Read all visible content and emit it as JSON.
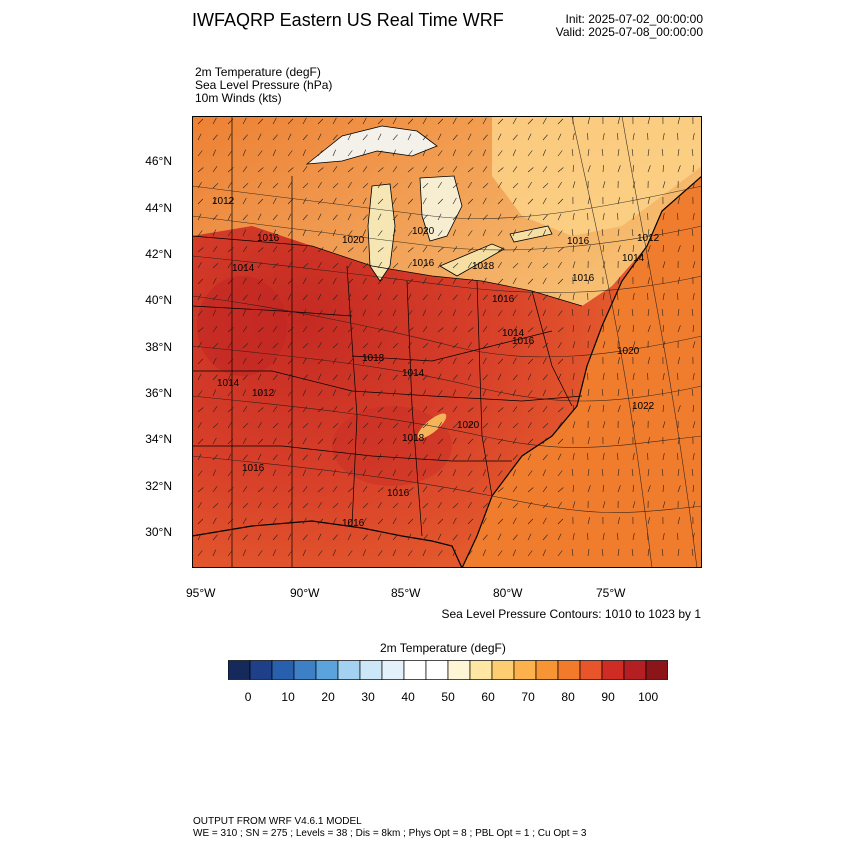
{
  "header": {
    "title": "IWFAQRP Eastern US Real Time WRF",
    "init": "Init: 2025-07-02_00:00:00",
    "valid": "Valid: 2025-07-08_00:00:00"
  },
  "fields": [
    "2m Temperature   (degF)",
    "Sea Level Pressure   (hPa)",
    "10m Winds   (kts)"
  ],
  "map": {
    "lat_labels": [
      "46°N",
      "44°N",
      "42°N",
      "40°N",
      "38°N",
      "36°N",
      "34°N",
      "32°N",
      "30°N"
    ],
    "lon_labels": [
      "95°W",
      "90°W",
      "85°W",
      "80°W",
      "75°W"
    ],
    "pressure_labels": [
      "1012",
      "1016",
      "1014",
      "1020",
      "1020",
      "1018",
      "1016",
      "1016",
      "1018",
      "1014",
      "1020",
      "1012",
      "1016",
      "1014",
      "1016",
      "1016",
      "1014",
      "1016",
      "1016",
      "1016",
      "1018",
      "1020",
      "1022",
      "1012",
      "1014"
    ],
    "contour_note": "Sea Level Pressure Contours: 1010 to 1023 by 1",
    "colors": {
      "land_hot": "#d83a25",
      "land_warm": "#ee6b2e",
      "ocean": "#f08030",
      "lake": "#f6e6b4",
      "north_cool": "#fbc26a"
    }
  },
  "colorbar": {
    "title": "2m Temperature  (degF)",
    "labels": [
      "0",
      "10",
      "20",
      "30",
      "40",
      "50",
      "60",
      "70",
      "80",
      "90",
      "100"
    ],
    "colors": [
      "#15295a",
      "#1f3f88",
      "#2860ad",
      "#3d80c6",
      "#5aa3dd",
      "#a2d1f1",
      "#cce7f7",
      "#e3f2fa",
      "#ffffff",
      "#ffffff",
      "#fef5d7",
      "#fee6a3",
      "#fdcd72",
      "#fcb14c",
      "#f79535",
      "#f17a2b",
      "#e8552b",
      "#cf2c26",
      "#b41f23",
      "#8b1519"
    ]
  },
  "footer": {
    "line1": "OUTPUT FROM WRF V4.6.1 MODEL",
    "line2": "WE = 310 ; SN = 275 ; Levels = 38 ; Dis = 8km ; Phys Opt = 8 ; PBL Opt = 1 ; Cu Opt = 3"
  }
}
